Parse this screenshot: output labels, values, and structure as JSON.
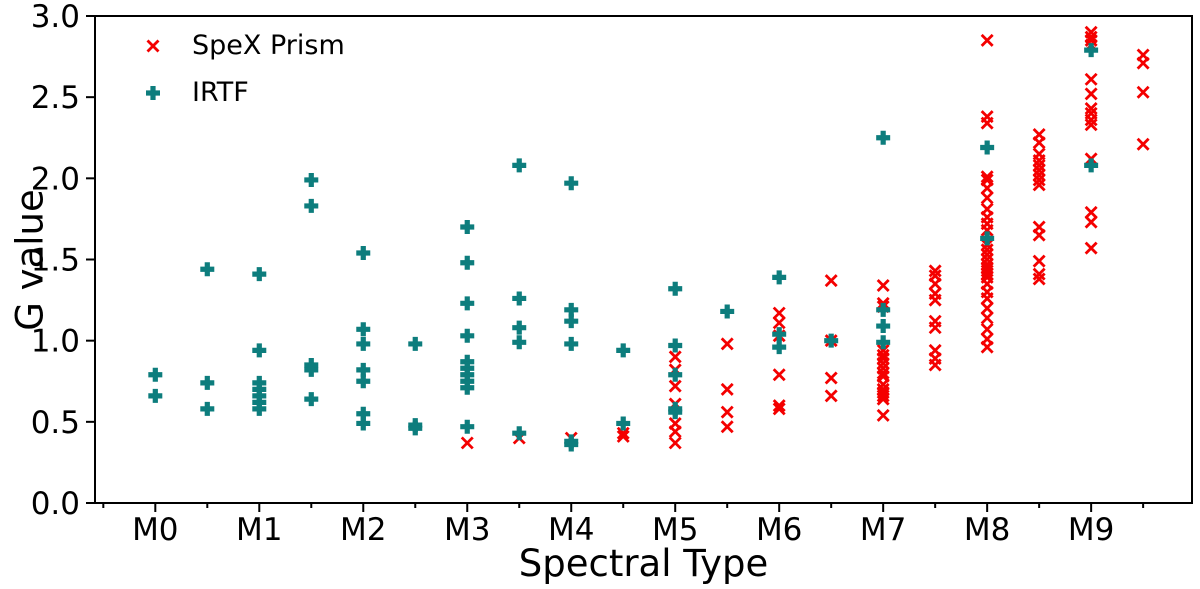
{
  "chart_data": {
    "type": "scatter",
    "title": "",
    "xlabel": "Spectral Type",
    "ylabel": "G value",
    "x_tick_values": [
      0,
      1,
      2,
      3,
      4,
      5,
      6,
      7,
      8,
      9
    ],
    "x_tick_labels": [
      "M0",
      "M1",
      "M2",
      "M3",
      "M4",
      "M5",
      "M6",
      "M7",
      "M8",
      "M9"
    ],
    "x_minor_tick_values": [
      -0.5,
      0.5,
      1.5,
      2.5,
      3.5,
      4.5,
      5.5,
      6.5,
      7.5,
      8.5,
      9.5
    ],
    "y_tick_values": [
      0.0,
      0.5,
      1.0,
      1.5,
      2.0,
      2.5,
      3.0
    ],
    "y_tick_labels": [
      "0.0",
      "0.5",
      "1.0",
      "1.5",
      "2.0",
      "2.5",
      "3.0"
    ],
    "xlim": [
      -0.58,
      9.97
    ],
    "ylim": [
      0.0,
      3.0
    ],
    "grid": false,
    "legend_position": "upper-left",
    "axis_color": "#000000",
    "series": [
      {
        "name": "SpeX Prism",
        "marker": "x",
        "color": "#f40000",
        "points": [
          [
            3,
            0.37
          ],
          [
            3.5,
            0.4
          ],
          [
            4,
            0.4
          ],
          [
            4.5,
            0.43
          ],
          [
            4.5,
            0.41
          ],
          [
            5,
            0.9
          ],
          [
            5,
            0.82
          ],
          [
            5,
            0.72
          ],
          [
            5,
            0.61
          ],
          [
            5,
            0.49
          ],
          [
            5,
            0.44
          ],
          [
            5,
            0.37
          ],
          [
            5.5,
            0.98
          ],
          [
            5.5,
            0.7
          ],
          [
            5.5,
            0.56
          ],
          [
            5.5,
            0.47
          ],
          [
            6,
            1.17
          ],
          [
            6,
            1.11
          ],
          [
            6,
            1.03
          ],
          [
            6,
            0.79
          ],
          [
            6,
            0.6
          ],
          [
            6,
            0.58
          ],
          [
            6.5,
            1.37
          ],
          [
            6.5,
            1.0
          ],
          [
            6.5,
            0.77
          ],
          [
            6.5,
            0.66
          ],
          [
            7,
            1.34
          ],
          [
            7,
            1.23
          ],
          [
            7,
            1.21
          ],
          [
            7,
            0.94
          ],
          [
            7,
            0.91
          ],
          [
            7,
            0.89
          ],
          [
            7,
            0.86
          ],
          [
            7,
            0.83
          ],
          [
            7,
            0.8
          ],
          [
            7,
            0.78
          ],
          [
            7,
            0.73
          ],
          [
            7,
            0.7
          ],
          [
            7,
            0.68
          ],
          [
            7,
            0.66
          ],
          [
            7,
            0.64
          ],
          [
            7,
            0.54
          ],
          [
            7.5,
            1.43
          ],
          [
            7.5,
            1.4
          ],
          [
            7.5,
            1.35
          ],
          [
            7.5,
            1.29
          ],
          [
            7.5,
            1.25
          ],
          [
            7.5,
            1.12
          ],
          [
            7.5,
            1.08
          ],
          [
            7.5,
            0.94
          ],
          [
            7.5,
            0.89
          ],
          [
            7.5,
            0.85
          ],
          [
            8,
            2.85
          ],
          [
            8,
            2.38
          ],
          [
            8,
            2.34
          ],
          [
            8,
            2.01
          ],
          [
            8,
            1.99
          ],
          [
            8,
            1.94
          ],
          [
            8,
            1.88
          ],
          [
            8,
            1.81
          ],
          [
            8,
            1.76
          ],
          [
            8,
            1.72
          ],
          [
            8,
            1.68
          ],
          [
            8,
            1.59
          ],
          [
            8,
            1.56
          ],
          [
            8,
            1.53
          ],
          [
            8,
            1.5
          ],
          [
            8,
            1.47
          ],
          [
            8,
            1.45
          ],
          [
            8,
            1.43
          ],
          [
            8,
            1.41
          ],
          [
            8,
            1.39
          ],
          [
            8,
            1.35
          ],
          [
            8,
            1.3
          ],
          [
            8,
            1.26
          ],
          [
            8,
            1.2
          ],
          [
            8,
            1.14
          ],
          [
            8,
            1.07
          ],
          [
            8,
            1.01
          ],
          [
            8,
            0.96
          ],
          [
            8.5,
            2.27
          ],
          [
            8.5,
            2.22
          ],
          [
            8.5,
            2.15
          ],
          [
            8.5,
            2.11
          ],
          [
            8.5,
            2.08
          ],
          [
            8.5,
            2.05
          ],
          [
            8.5,
            2.02
          ],
          [
            8.5,
            1.99
          ],
          [
            8.5,
            1.96
          ],
          [
            8.5,
            1.7
          ],
          [
            8.5,
            1.65
          ],
          [
            8.5,
            1.49
          ],
          [
            8.5,
            1.41
          ],
          [
            8.5,
            1.38
          ],
          [
            9,
            2.9
          ],
          [
            9,
            2.87
          ],
          [
            9,
            2.85
          ],
          [
            9,
            2.82
          ],
          [
            9,
            2.61
          ],
          [
            9,
            2.52
          ],
          [
            9,
            2.43
          ],
          [
            9,
            2.4
          ],
          [
            9,
            2.36
          ],
          [
            9,
            2.33
          ],
          [
            9,
            2.12
          ],
          [
            9,
            1.79
          ],
          [
            9,
            1.73
          ],
          [
            9,
            1.57
          ],
          [
            9.5,
            2.76
          ],
          [
            9.5,
            2.71
          ],
          [
            9.5,
            2.53
          ],
          [
            9.5,
            2.21
          ]
        ]
      },
      {
        "name": "IRTF",
        "marker": "plus",
        "color": "#0d7d7d",
        "points": [
          [
            0,
            0.79
          ],
          [
            0,
            0.66
          ],
          [
            0.5,
            1.44
          ],
          [
            0.5,
            0.74
          ],
          [
            0.5,
            0.58
          ],
          [
            1,
            1.41
          ],
          [
            1,
            0.94
          ],
          [
            1,
            0.74
          ],
          [
            1,
            0.7
          ],
          [
            1,
            0.66
          ],
          [
            1,
            0.62
          ],
          [
            1,
            0.58
          ],
          [
            1.5,
            1.99
          ],
          [
            1.5,
            1.83
          ],
          [
            1.5,
            0.85
          ],
          [
            1.5,
            0.82
          ],
          [
            1.5,
            0.64
          ],
          [
            2,
            1.54
          ],
          [
            2,
            1.07
          ],
          [
            2,
            0.98
          ],
          [
            2,
            0.82
          ],
          [
            2,
            0.75
          ],
          [
            2,
            0.55
          ],
          [
            2,
            0.49
          ],
          [
            2.5,
            0.98
          ],
          [
            2.5,
            0.48
          ],
          [
            2.5,
            0.46
          ],
          [
            3,
            1.7
          ],
          [
            3,
            1.48
          ],
          [
            3,
            1.23
          ],
          [
            3,
            1.03
          ],
          [
            3,
            0.87
          ],
          [
            3,
            0.83
          ],
          [
            3,
            0.79
          ],
          [
            3,
            0.75
          ],
          [
            3,
            0.71
          ],
          [
            3,
            0.47
          ],
          [
            3.5,
            2.08
          ],
          [
            3.5,
            1.26
          ],
          [
            3.5,
            1.08
          ],
          [
            3.5,
            0.99
          ],
          [
            3.5,
            0.43
          ],
          [
            4,
            1.97
          ],
          [
            4,
            1.19
          ],
          [
            4,
            1.12
          ],
          [
            4,
            0.98
          ],
          [
            4,
            0.38
          ],
          [
            4,
            0.36
          ],
          [
            4.5,
            0.94
          ],
          [
            4.5,
            0.49
          ],
          [
            5,
            1.32
          ],
          [
            5,
            0.97
          ],
          [
            5,
            0.79
          ],
          [
            5,
            0.58
          ],
          [
            5,
            0.56
          ],
          [
            5.5,
            1.18
          ],
          [
            6,
            1.39
          ],
          [
            6,
            1.04
          ],
          [
            6,
            0.96
          ],
          [
            6.5,
            1.0
          ],
          [
            7,
            2.25
          ],
          [
            7,
            1.19
          ],
          [
            7,
            1.09
          ],
          [
            7,
            0.99
          ],
          [
            8,
            2.19
          ],
          [
            8,
            1.63
          ],
          [
            9,
            2.79
          ],
          [
            9,
            2.08
          ]
        ]
      }
    ]
  }
}
